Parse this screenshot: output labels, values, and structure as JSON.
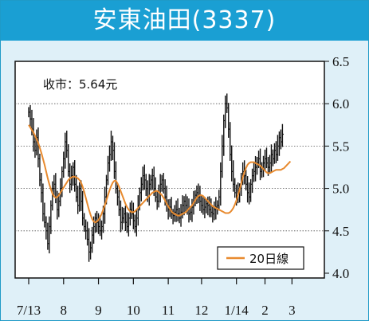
{
  "header": {
    "title": "安東油田(3337)"
  },
  "chart_data": {
    "type": "candlestick",
    "title": "安東油田(3337)",
    "close_label": "收市：5.64元",
    "y_ticks": [
      "6.5",
      "6.0",
      "5.5",
      "5.0",
      "4.5",
      "4.0"
    ],
    "y_tick_values": [
      6.5,
      6.0,
      5.5,
      5.0,
      4.5,
      4.0
    ],
    "ylim": [
      4.0,
      6.5
    ],
    "x_tick_labels": [
      "7/13",
      "8",
      "9",
      "10",
      "11",
      "12",
      "1/14",
      "2",
      "3"
    ],
    "x_tick_index": [
      0,
      22,
      44,
      66,
      88,
      109,
      131,
      149,
      166
    ],
    "grid": "horizontal-dashed",
    "legend_position": "bottom-right",
    "series": [
      {
        "name": "20日線",
        "kind": "moving-average",
        "color": "#e88a2e",
        "values": [
          5.75,
          5.72,
          5.69,
          5.66,
          5.62,
          5.58,
          5.54,
          5.48,
          5.42,
          5.35,
          5.28,
          5.2,
          5.12,
          5.05,
          4.99,
          4.94,
          4.91,
          4.89,
          4.9,
          4.92,
          4.95,
          4.98,
          5.01,
          5.04,
          5.07,
          5.1,
          5.12,
          5.13,
          5.14,
          5.14,
          5.13,
          5.12,
          5.1,
          5.07,
          5.02,
          4.96,
          4.89,
          4.82,
          4.75,
          4.69,
          4.64,
          4.61,
          4.6,
          4.61,
          4.63,
          4.66,
          4.7,
          4.75,
          4.8,
          4.86,
          4.92,
          4.98,
          5.03,
          5.07,
          5.09,
          5.09,
          5.06,
          5.02,
          4.97,
          4.92,
          4.87,
          4.82,
          4.78,
          4.75,
          4.73,
          4.72,
          4.72,
          4.73,
          4.75,
          4.77,
          4.79,
          4.81,
          4.83,
          4.85,
          4.87,
          4.89,
          4.91,
          4.93,
          4.95,
          4.96,
          4.97,
          4.97,
          4.96,
          4.94,
          4.92,
          4.89,
          4.86,
          4.82,
          4.79,
          4.76,
          4.73,
          4.71,
          4.7,
          4.69,
          4.68,
          4.68,
          4.69,
          4.7,
          4.71,
          4.72,
          4.74,
          4.76,
          4.78,
          4.8,
          4.83,
          4.86,
          4.89,
          4.91,
          4.92,
          4.92,
          4.91,
          4.89,
          4.87,
          4.85,
          4.83,
          4.81,
          4.79,
          4.78,
          4.77,
          4.76,
          4.75,
          4.74,
          4.73,
          4.72,
          4.71,
          4.71,
          4.71,
          4.72,
          4.74,
          4.77,
          4.81,
          4.86,
          4.92,
          4.99,
          5.06,
          5.13,
          5.19,
          5.24,
          5.28,
          5.3,
          5.31,
          5.31,
          5.31,
          5.3,
          5.29,
          5.28,
          5.27,
          5.25,
          5.23,
          5.21,
          5.19,
          5.18,
          5.18,
          5.19,
          5.2,
          5.21,
          5.22,
          5.22,
          5.22,
          5.22,
          5.23,
          5.24,
          5.26,
          5.28,
          5.3,
          5.32
        ]
      },
      {
        "name": "price",
        "kind": "close",
        "color": "#111111",
        "values": [
          5.9,
          5.82,
          5.7,
          5.55,
          5.45,
          5.6,
          5.35,
          5.1,
          4.95,
          4.7,
          4.6,
          4.5,
          4.35,
          4.55,
          4.8,
          5.0,
          5.05,
          4.9,
          4.75,
          4.85,
          5.0,
          5.2,
          5.35,
          5.55,
          5.45,
          5.2,
          5.05,
          5.15,
          5.25,
          5.05,
          4.9,
          4.8,
          5.0,
          4.85,
          4.65,
          4.55,
          4.5,
          4.4,
          4.25,
          4.3,
          4.45,
          4.55,
          4.65,
          4.6,
          4.55,
          4.5,
          4.55,
          4.7,
          4.9,
          5.1,
          5.3,
          5.4,
          5.55,
          5.45,
          5.2,
          5.0,
          4.9,
          4.75,
          4.6,
          4.65,
          4.7,
          4.6,
          4.55,
          4.65,
          4.75,
          4.7,
          4.62,
          4.55,
          4.65,
          4.8,
          4.95,
          5.05,
          5.15,
          5.1,
          5.0,
          4.9,
          5.05,
          5.1,
          5.15,
          5.0,
          4.9,
          4.85,
          4.95,
          5.05,
          5.1,
          5.0,
          4.9,
          4.8,
          4.75,
          4.78,
          4.7,
          4.68,
          4.72,
          4.75,
          4.7,
          4.65,
          4.72,
          4.8,
          4.85,
          4.8,
          4.75,
          4.7,
          4.72,
          4.78,
          4.85,
          4.92,
          4.95,
          4.9,
          4.85,
          4.8,
          4.75,
          4.78,
          4.82,
          4.8,
          4.75,
          4.72,
          4.7,
          4.75,
          4.78,
          4.8,
          4.9,
          5.2,
          5.5,
          5.8,
          6.0,
          5.95,
          5.7,
          5.4,
          5.2,
          5.05,
          4.95,
          4.9,
          4.95,
          5.0,
          5.1,
          5.2,
          5.15,
          5.05,
          4.95,
          4.9,
          5.05,
          5.15,
          5.2,
          5.25,
          5.3,
          5.35,
          5.2,
          5.25,
          5.3,
          5.35,
          5.3,
          5.25,
          5.3,
          5.4,
          5.35,
          5.45,
          5.4,
          5.5,
          5.6,
          5.55,
          5.64
        ]
      }
    ]
  }
}
